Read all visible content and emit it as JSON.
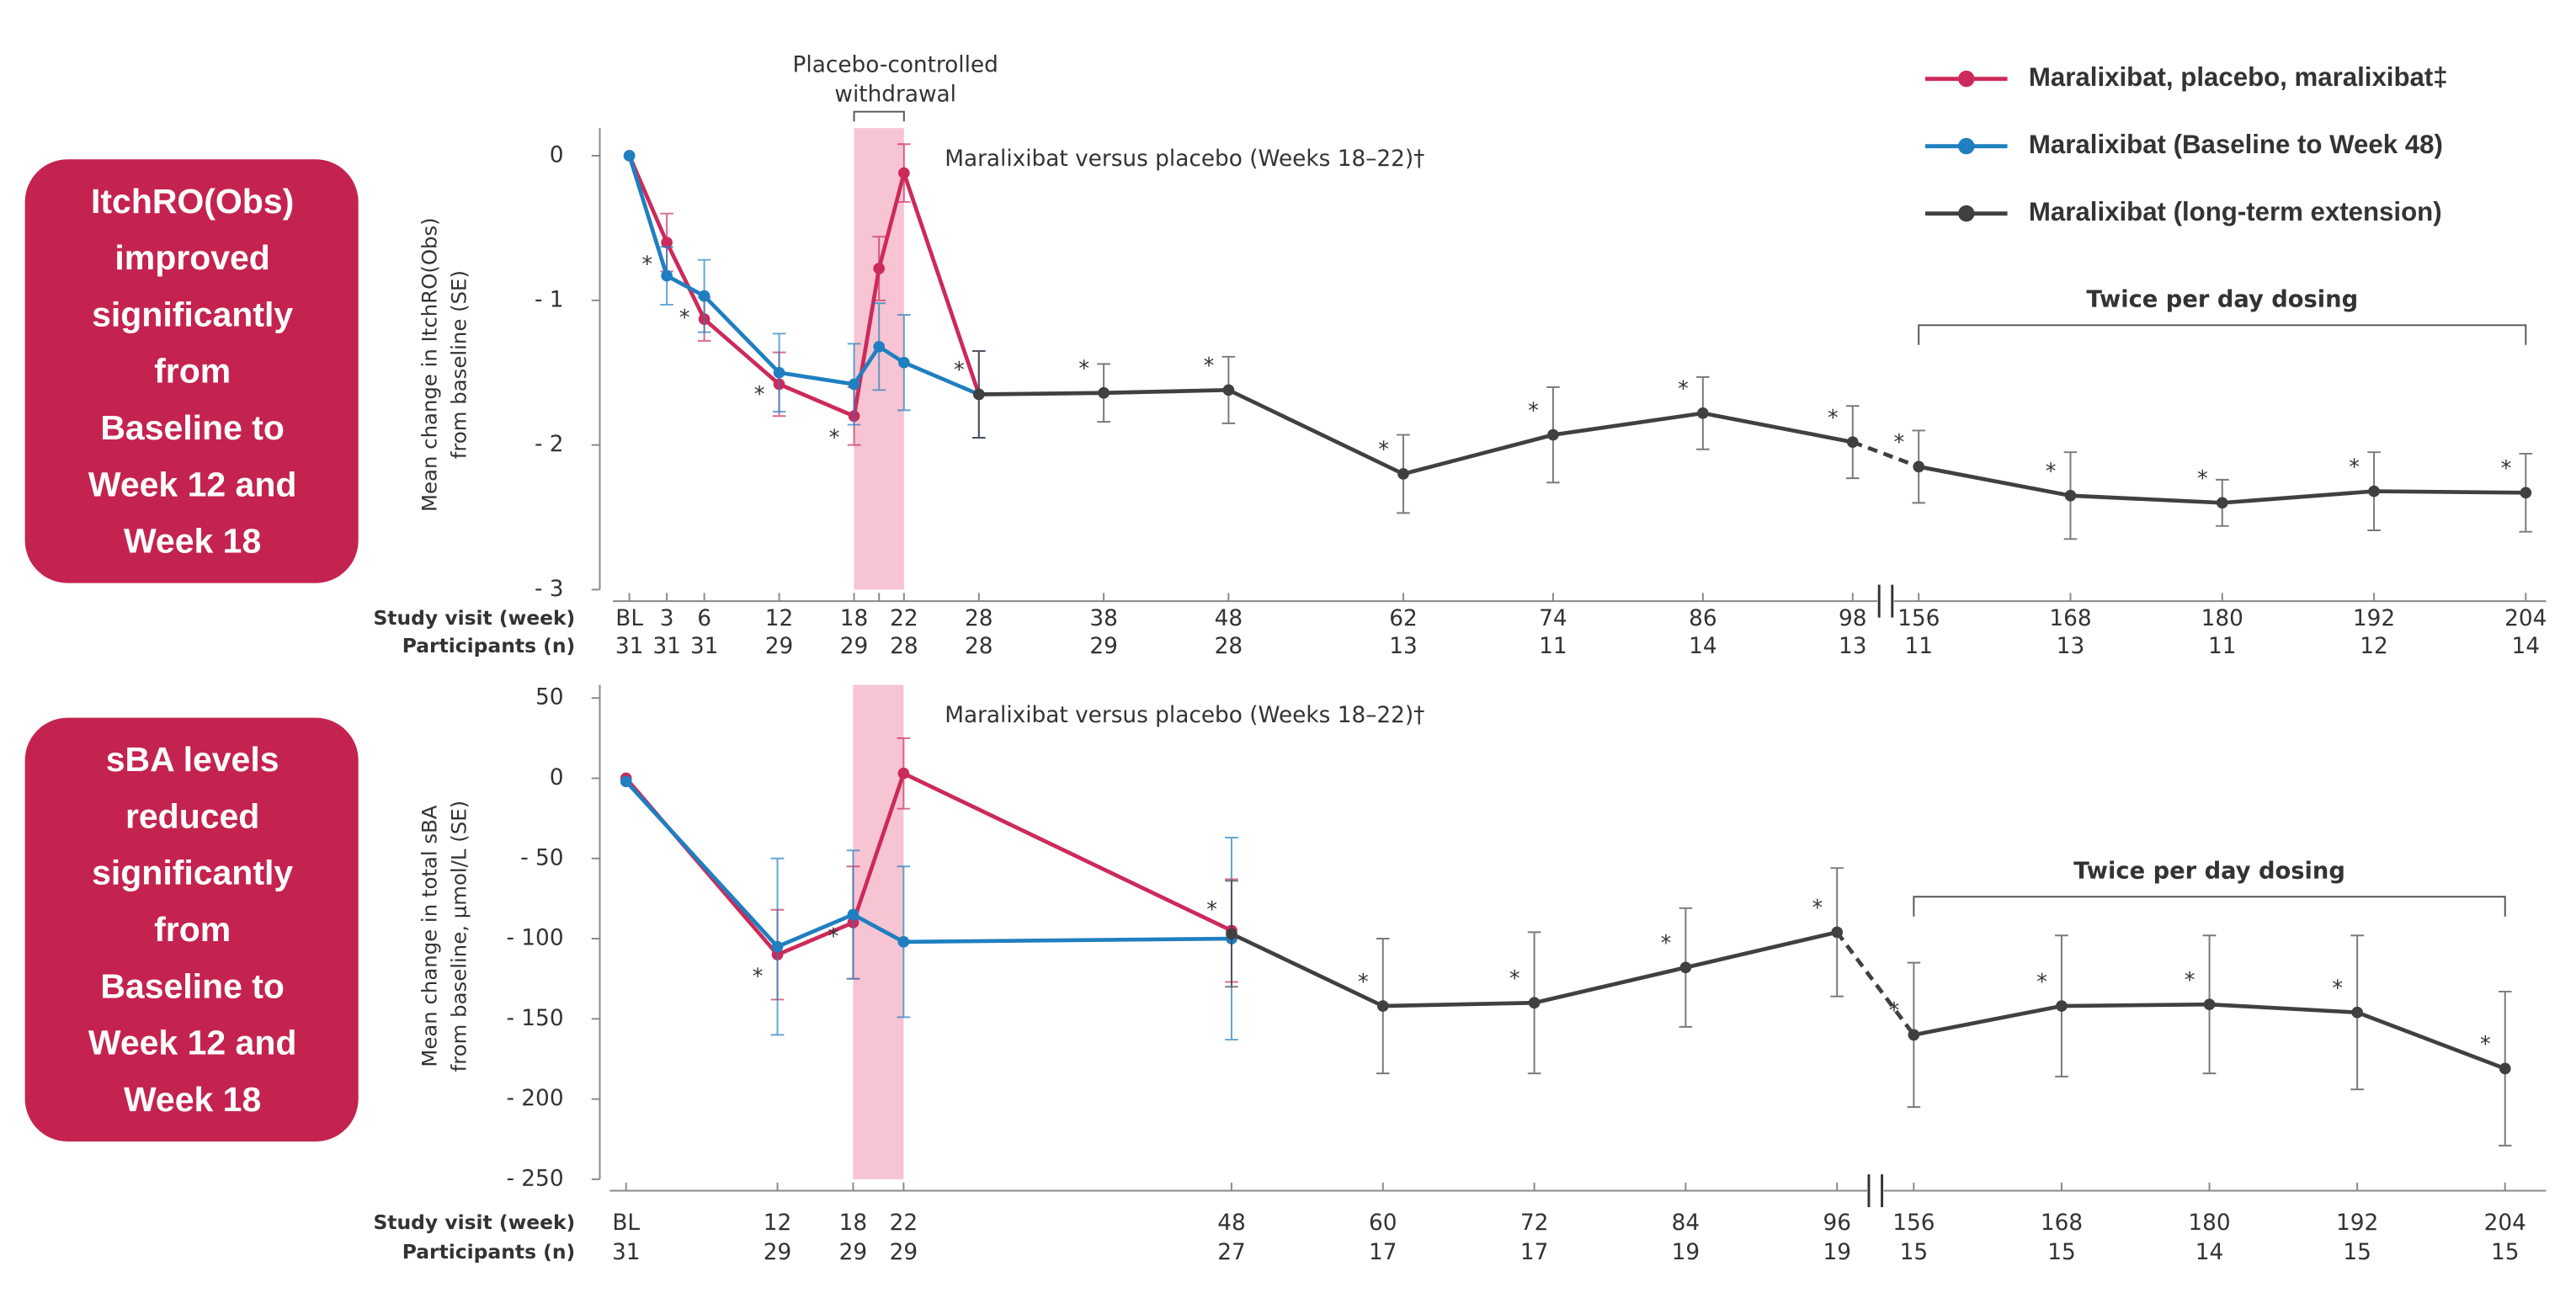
{
  "chart_data": [
    {
      "type": "line",
      "callout": [
        "ItchRO(Obs)",
        "improved",
        "significantly",
        "from",
        "Baseline to",
        "Week 12 and",
        "Week 18"
      ],
      "y_label": [
        "Mean change in ItchRO(Obs)",
        "from baseline (SE)"
      ],
      "row_labels": [
        "Study visit (week)",
        "Participants (n)"
      ],
      "categories": [
        "BL",
        "3",
        "6",
        "12",
        "18",
        null,
        "22",
        "28",
        "38",
        "48",
        "62",
        "74",
        "86",
        "98",
        "156",
        "168",
        "180",
        "192",
        "204"
      ],
      "participants": [
        "31",
        "31",
        "31",
        "29",
        "29",
        null,
        "28",
        "28",
        "29",
        "28",
        "13",
        "11",
        "14",
        "13",
        "11",
        "13",
        "11",
        "12",
        "14"
      ],
      "ylim": [
        -3,
        0.1
      ],
      "yticks": [
        0,
        {
          "value": -1,
          "label": "- 1"
        },
        {
          "value": -2,
          "label": "- 2"
        },
        {
          "value": -3,
          "label": "- 3"
        }
      ],
      "shaded_region": {
        "from": "18",
        "to": "22",
        "color": "#f6c4d3",
        "label": [
          "Placebo-controlled",
          "withdrawal"
        ]
      },
      "annotation": "Maralixibat versus placebo (Weeks 18–22)†",
      "bracket": {
        "from": "156",
        "to": "204",
        "label": "Twice per day dosing"
      },
      "series": [
        {
          "name": "Maralixibat, placebo, maralixibat‡",
          "color": "#cc2a5a",
          "values": [
            0,
            -0.6,
            -1.13,
            -1.58,
            -1.8,
            -0.78,
            -0.12,
            -1.65,
            null,
            null,
            null,
            null,
            null,
            null,
            null,
            null,
            null,
            null,
            null
          ],
          "errors": [
            null,
            0.2,
            0.15,
            0.22,
            0.2,
            0.22,
            0.2,
            0.3,
            null,
            null,
            null,
            null,
            null,
            null,
            null,
            null,
            null,
            null,
            null
          ],
          "marks": [
            null,
            "*",
            null,
            null,
            "*",
            null,
            null,
            null,
            null,
            null,
            null,
            null,
            null,
            null,
            null,
            null,
            null,
            null,
            null
          ]
        },
        {
          "name": "Maralixibat (Baseline to Week 48)",
          "color": "#1f7fc0",
          "values": [
            0,
            -0.83,
            -0.97,
            -1.5,
            -1.58,
            -1.32,
            -1.43,
            -1.65,
            null,
            null,
            null,
            null,
            null,
            null,
            null,
            null,
            null,
            null,
            null
          ],
          "errors": [
            null,
            0.2,
            0.25,
            0.27,
            0.28,
            0.3,
            0.33,
            0.3,
            null,
            null,
            null,
            null,
            null,
            null,
            null,
            null,
            null,
            null,
            null
          ],
          "marks": [
            null,
            null,
            "*",
            "*",
            null,
            null,
            null,
            null,
            null,
            null,
            null,
            null,
            null,
            null,
            null,
            null,
            null,
            null,
            null
          ]
        },
        {
          "name": "Maralixibat (long-term extension)",
          "color": "#404040",
          "values": [
            null,
            null,
            null,
            null,
            null,
            null,
            null,
            -1.65,
            -1.64,
            -1.62,
            -2.2,
            -1.93,
            -1.78,
            -1.98,
            -2.15,
            -2.35,
            -2.4,
            -2.32,
            -2.33
          ],
          "errors": [
            null,
            null,
            null,
            null,
            null,
            null,
            null,
            0.3,
            0.2,
            0.23,
            0.27,
            0.33,
            0.25,
            0.25,
            0.25,
            0.3,
            0.16,
            0.27,
            0.27
          ],
          "marks": [
            null,
            null,
            null,
            null,
            null,
            null,
            null,
            "*",
            "*",
            "*",
            "*",
            "*",
            "*",
            "*",
            "*",
            "*",
            "*",
            "*",
            "*"
          ]
        }
      ]
    },
    {
      "type": "line",
      "callout": [
        "sBA levels",
        "reduced",
        "significantly",
        "from",
        "Baseline to",
        "Week 12 and",
        "Week 18"
      ],
      "y_label": [
        "Mean change in total sBA",
        "from baseline, μmol/L (SE)"
      ],
      "row_labels": [
        "Study visit (week)",
        "Participants (n)"
      ],
      "categories": [
        "BL",
        "12",
        "18",
        "22",
        "48",
        "60",
        "72",
        "84",
        "96",
        "156",
        "168",
        "180",
        "192",
        "204"
      ],
      "participants": [
        "31",
        "29",
        "29",
        "29",
        "27",
        "17",
        "17",
        "19",
        "19",
        "15",
        "15",
        "14",
        "15",
        "15"
      ],
      "ylim": [
        -250,
        50
      ],
      "yticks": [
        50,
        0,
        {
          "value": -50,
          "label": "- 50"
        },
        {
          "value": -100,
          "label": "- 100"
        },
        {
          "value": -150,
          "label": "- 150"
        },
        {
          "value": -200,
          "label": "- 200"
        },
        {
          "value": -250,
          "label": "- 250"
        }
      ],
      "shaded_region": {
        "from": "18",
        "to": "22",
        "color": "#f6c4d3"
      },
      "annotation": "Maralixibat versus placebo (Weeks 18–22)†",
      "bracket": {
        "from": "156",
        "to": "204",
        "label": "Twice per day dosing"
      },
      "series": [
        {
          "color": "#cc2a5a",
          "values": [
            0,
            -110,
            -90,
            3,
            -95,
            null,
            null,
            null,
            null,
            null,
            null,
            null,
            null,
            null
          ],
          "errors": [
            null,
            28,
            35,
            22,
            32,
            null,
            null,
            null,
            null,
            null,
            null,
            null,
            null,
            null
          ],
          "marks": [
            null,
            "*",
            null,
            null,
            null,
            null,
            null,
            null,
            null,
            null,
            null,
            null,
            null,
            null
          ]
        },
        {
          "color": "#1f7fc0",
          "values": [
            -2,
            -105,
            -85,
            -102,
            -100,
            null,
            null,
            null,
            null,
            null,
            null,
            null,
            null,
            null
          ],
          "errors": [
            null,
            55,
            40,
            47,
            63,
            null,
            null,
            null,
            null,
            null,
            null,
            null,
            null,
            null
          ],
          "marks": [
            null,
            null,
            "*",
            null,
            null,
            null,
            null,
            null,
            null,
            null,
            null,
            null,
            null,
            null
          ]
        },
        {
          "color": "#404040",
          "values": [
            null,
            null,
            null,
            null,
            -97,
            -142,
            -140,
            -118,
            -96,
            -160,
            -142,
            -141,
            -146,
            -181
          ],
          "errors": [
            null,
            null,
            null,
            null,
            33,
            42,
            44,
            37,
            40,
            45,
            44,
            43,
            48,
            48
          ],
          "marks": [
            null,
            null,
            null,
            null,
            "*",
            "*",
            "*",
            "*",
            "*",
            "*",
            "*",
            "*",
            "*",
            "*"
          ]
        }
      ]
    }
  ]
}
